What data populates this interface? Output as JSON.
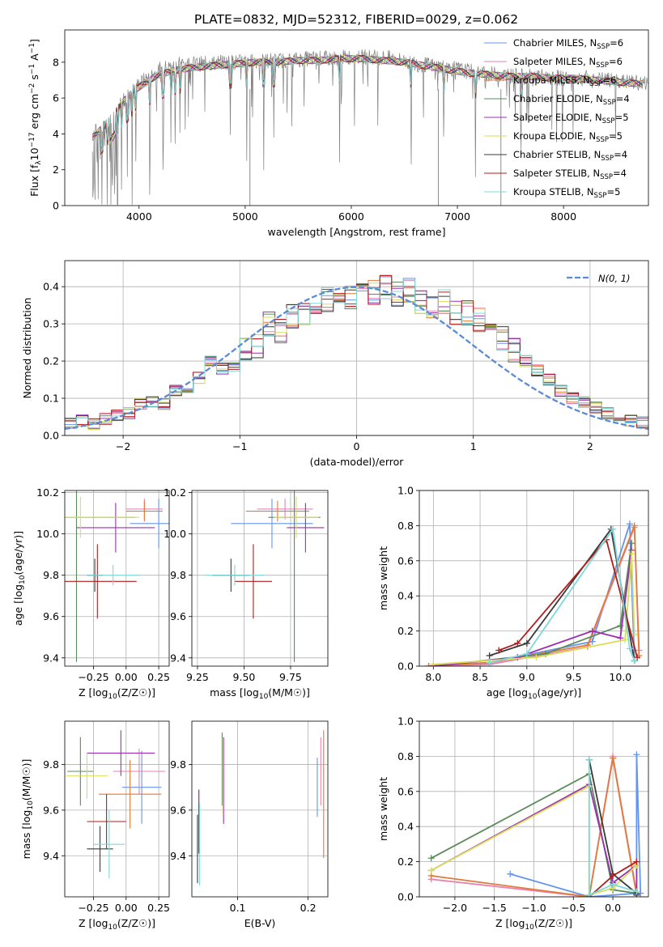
{
  "title": "PLATE=0832, MJD=52312, FIBERID=0029, z=0.062",
  "colors": {
    "data": "#808080",
    "Chabrier MILES": "#6495ed",
    "Salpeter MILES": "#e683b3",
    "Kroupa MILES": "#e07b39",
    "Chabrier ELODIE": "#5b8a5b",
    "Salpeter ELODIE": "#9b30b0",
    "Kroupa ELODIE": "#d8de57",
    "Chabrier STELIB": "#3a3a3a",
    "Salpeter STELIB": "#b01c1c",
    "Kroupa STELIB": "#7fd8d8",
    "normal": "#5b8bd6"
  },
  "legend_labels": [
    {
      "pre": "Chabrier MILES, N",
      "sub": "SSP",
      "post": "=6"
    },
    {
      "pre": "Salpeter MILES, N",
      "sub": "SSP",
      "post": "=6"
    },
    {
      "pre": "Kroupa MILES, N",
      "sub": "SSP",
      "post": "=6"
    },
    {
      "pre": "Chabrier ELODIE, N",
      "sub": "SSP",
      "post": "=4"
    },
    {
      "pre": "Salpeter ELODIE, N",
      "sub": "SSP",
      "post": "=5"
    },
    {
      "pre": "Kroupa ELODIE, N",
      "sub": "SSP",
      "post": "=5"
    },
    {
      "pre": "Chabrier STELIB, N",
      "sub": "SSP",
      "post": "=4"
    },
    {
      "pre": "Salpeter STELIB, N",
      "sub": "SSP",
      "post": "=4"
    },
    {
      "pre": "Kroupa STELIB, N",
      "sub": "SSP",
      "post": "=5"
    }
  ],
  "chart_data": [
    {
      "id": "spectrum",
      "type": "line",
      "xlabel": "wavelength [Angstrom, rest frame]",
      "ylabel": "Flux [fλ10⁻¹⁷ erg cm⁻² s⁻¹ A⁻¹]",
      "xlim": [
        3300,
        8800
      ],
      "ylim": [
        0,
        9.8
      ],
      "xticks": [
        4000,
        5000,
        6000,
        7000,
        8000
      ],
      "yticks": [
        0,
        2,
        4,
        6,
        8
      ],
      "legend": "right",
      "data_spectrum_envelope": {
        "x": [
          3560,
          3700,
          3850,
          4000,
          4200,
          4400,
          4600,
          4800,
          5000,
          5200,
          5400,
          5600,
          5800,
          6000,
          6200,
          6400,
          6600,
          6800,
          7000,
          7200,
          7400,
          7600,
          7800,
          8000,
          8200,
          8400,
          8600,
          8800
        ],
        "y": [
          4.0,
          4.5,
          5.8,
          6.8,
          7.6,
          7.9,
          7.9,
          8.0,
          8.0,
          8.1,
          8.1,
          8.2,
          8.2,
          8.3,
          8.3,
          8.2,
          7.9,
          7.8,
          7.6,
          7.4,
          7.3,
          7.2,
          7.2,
          7.1,
          7.1,
          7.0,
          6.9,
          6.8
        ]
      },
      "model_curve": {
        "x": [
          3560,
          3650,
          3750,
          3850,
          3950,
          4050,
          4150,
          4300,
          4500,
          4700,
          4900,
          5100,
          5300,
          5500,
          5700,
          5900,
          6100,
          6300,
          6500,
          6700,
          6900,
          7100,
          7300,
          7500,
          7700,
          7900,
          8100,
          8300,
          8500,
          8700
        ],
        "y": [
          3.8,
          4.3,
          5.0,
          5.8,
          6.4,
          6.8,
          7.2,
          7.5,
          7.7,
          7.8,
          7.9,
          8.0,
          8.0,
          8.1,
          8.1,
          8.2,
          8.2,
          8.1,
          8.0,
          7.8,
          7.6,
          7.4,
          7.3,
          7.2,
          7.2,
          7.1,
          7.1,
          7.0,
          6.9,
          6.8
        ]
      }
    },
    {
      "id": "residuals",
      "type": "area",
      "xlabel": "(data-model)/error",
      "ylabel": "Normed distribution",
      "xlim": [
        -2.5,
        2.5
      ],
      "ylim": [
        0,
        0.47
      ],
      "xticks": [
        -2,
        -1,
        0,
        1,
        2
      ],
      "yticks": [
        0.0,
        0.1,
        0.2,
        0.3,
        0.4
      ],
      "legend": "top-right",
      "normal_label": "N(0, 1)",
      "bin_edges_step": 0.1,
      "histogram_reference": [
        0.033,
        0.04,
        0.03,
        0.045,
        0.055,
        0.06,
        0.085,
        0.09,
        0.085,
        0.12,
        0.13,
        0.155,
        0.2,
        0.18,
        0.18,
        0.23,
        0.24,
        0.3,
        0.28,
        0.32,
        0.33,
        0.36,
        0.365,
        0.37,
        0.37,
        0.375,
        0.385,
        0.4,
        0.38,
        0.39,
        0.36,
        0.34,
        0.36,
        0.33,
        0.33,
        0.31,
        0.28,
        0.26,
        0.23,
        0.2,
        0.175,
        0.15,
        0.12,
        0.1,
        0.09,
        0.075,
        0.06,
        0.05,
        0.04,
        0.035
      ]
    },
    {
      "id": "age_vs_Z",
      "type": "scatter",
      "xlabel": "Z [log10(Z/Z☉)]",
      "ylabel": "age [log10(age/yr)]",
      "xlim": [
        -0.47,
        0.33
      ],
      "ylim": [
        9.36,
        10.21
      ],
      "xticks": [
        -0.25,
        0.0,
        0.25
      ],
      "yticks": [
        9.4,
        9.6,
        9.8,
        10.0,
        10.2
      ],
      "points": [
        {
          "model": "Chabrier MILES",
          "x": 0.25,
          "xerr": 0.22,
          "y": 10.05,
          "yerr": 0.12
        },
        {
          "model": "Salpeter MILES",
          "x": 0.14,
          "xerr": 0.14,
          "y": 10.12,
          "yerr": 0.05
        },
        {
          "model": "Kroupa MILES",
          "x": 0.14,
          "xerr": 0.14,
          "y": 10.11,
          "yerr": 0.05
        },
        {
          "model": "Chabrier ELODIE",
          "x": -0.38,
          "xerr": 0.45,
          "y": 10.08,
          "yerr": 0.7
        },
        {
          "model": "Salpeter ELODIE",
          "x": -0.08,
          "xerr": 0.3,
          "y": 10.03,
          "yerr": 0.12
        },
        {
          "model": "Kroupa ELODIE",
          "x": -0.35,
          "xerr": 0.45,
          "y": 10.08,
          "yerr": 0.1
        },
        {
          "model": "Chabrier STELIB",
          "x": -0.24,
          "xerr": 0.06,
          "y": 9.8,
          "yerr": 0.08
        },
        {
          "model": "Salpeter STELIB",
          "x": -0.22,
          "xerr": 0.3,
          "y": 9.77,
          "yerr": 0.18
        },
        {
          "model": "Kroupa STELIB",
          "x": -0.1,
          "xerr": 0.2,
          "y": 9.8,
          "yerr": 0.05
        }
      ]
    },
    {
      "id": "age_vs_mass",
      "type": "scatter",
      "xlabel": "mass [log10(M/M☉)]",
      "xlim": [
        9.22,
        9.95
      ],
      "ylim": [
        9.36,
        10.21
      ],
      "xticks": [
        9.25,
        9.5,
        9.75
      ],
      "yticks": [
        9.4,
        9.6,
        9.8,
        10.0,
        10.2
      ],
      "points": [
        {
          "model": "Chabrier MILES",
          "x": 9.65,
          "xerr": 0.22,
          "y": 10.05,
          "yerr": 0.12
        },
        {
          "model": "Salpeter MILES",
          "x": 9.72,
          "xerr": 0.15,
          "y": 10.12,
          "yerr": 0.05
        },
        {
          "model": "Kroupa MILES",
          "x": 9.68,
          "xerr": 0.17,
          "y": 10.11,
          "yerr": 0.05
        },
        {
          "model": "Chabrier ELODIE",
          "x": 9.77,
          "xerr": 0.14,
          "y": 10.08,
          "yerr": 0.7
        },
        {
          "model": "Salpeter ELODIE",
          "x": 9.83,
          "xerr": 0.1,
          "y": 10.03,
          "yerr": 0.12
        },
        {
          "model": "Kroupa ELODIE",
          "x": 9.78,
          "xerr": 0.12,
          "y": 10.08,
          "yerr": 0.1
        },
        {
          "model": "Chabrier STELIB",
          "x": 9.43,
          "xerr": 0.1,
          "y": 9.8,
          "yerr": 0.08
        },
        {
          "model": "Salpeter STELIB",
          "x": 9.55,
          "xerr": 0.1,
          "y": 9.77,
          "yerr": 0.18
        },
        {
          "model": "Kroupa STELIB",
          "x": 9.45,
          "xerr": 0.16,
          "y": 9.8,
          "yerr": 0.05
        }
      ]
    },
    {
      "id": "massweight_vs_age",
      "type": "line",
      "xlabel": "age [log10(age/yr)]",
      "ylabel": "mass weight",
      "xlim": [
        7.85,
        10.3
      ],
      "ylim": [
        0,
        1.0
      ],
      "xticks": [
        8.0,
        8.5,
        9.0,
        9.5,
        10.0
      ],
      "yticks": [
        0.0,
        0.2,
        0.4,
        0.6,
        0.8,
        1.0
      ],
      "series": [
        {
          "model": "Chabrier MILES",
          "x": [
            7.95,
            8.6,
            9.7,
            10.1,
            10.15
          ],
          "y": [
            0.0,
            0.02,
            0.14,
            0.81,
            0.03
          ]
        },
        {
          "model": "Salpeter MILES",
          "x": [
            7.95,
            8.6,
            9.65,
            10.15,
            10.2
          ],
          "y": [
            0.0,
            0.01,
            0.11,
            0.79,
            0.09
          ]
        },
        {
          "model": "Kroupa MILES",
          "x": [
            7.95,
            8.6,
            9.65,
            10.15,
            10.2
          ],
          "y": [
            0.0,
            0.02,
            0.12,
            0.8,
            0.06
          ]
        },
        {
          "model": "Chabrier ELODIE",
          "x": [
            8.0,
            9.2,
            10.0,
            10.12
          ],
          "y": [
            0.0,
            0.07,
            0.23,
            0.7
          ]
        },
        {
          "model": "Salpeter ELODIE",
          "x": [
            8.0,
            8.9,
            9.7,
            10.0,
            10.12
          ],
          "y": [
            0.0,
            0.05,
            0.2,
            0.16,
            0.66
          ]
        },
        {
          "model": "Kroupa ELODIE",
          "x": [
            8.0,
            9.1,
            10.05,
            10.12,
            10.15
          ],
          "y": [
            0.01,
            0.05,
            0.15,
            0.64,
            0.18
          ]
        },
        {
          "model": "Chabrier STELIB",
          "x": [
            8.6,
            9.0,
            9.9,
            10.15
          ],
          "y": [
            0.06,
            0.13,
            0.78,
            0.03
          ]
        },
        {
          "model": "Salpeter STELIB",
          "x": [
            8.7,
            8.9,
            9.85,
            10.18
          ],
          "y": [
            0.09,
            0.13,
            0.72,
            0.05
          ]
        },
        {
          "model": "Kroupa STELIB",
          "x": [
            8.6,
            9.0,
            9.92,
            10.1,
            10.15
          ],
          "y": [
            0.02,
            0.07,
            0.78,
            0.1,
            0.03
          ]
        }
      ]
    },
    {
      "id": "mass_vs_Z",
      "type": "scatter",
      "xlabel": "Z [log10(Z/Z☉)]",
      "ylabel": "mass [log10(M/M☉)]",
      "xlim": [
        -0.47,
        0.33
      ],
      "ylim": [
        9.22,
        9.99
      ],
      "xticks": [
        -0.25,
        0.0,
        0.25
      ],
      "yticks": [
        9.4,
        9.6,
        9.8
      ],
      "points": [
        {
          "model": "Chabrier MILES",
          "x": 0.12,
          "xerr": 0.15,
          "y": 9.7,
          "yerr": 0.16
        },
        {
          "model": "Salpeter MILES",
          "x": 0.1,
          "xerr": 0.2,
          "y": 9.77,
          "yerr": 0.1
        },
        {
          "model": "Kroupa MILES",
          "x": 0.03,
          "xerr": 0.24,
          "y": 9.67,
          "yerr": 0.15
        },
        {
          "model": "Chabrier ELODIE",
          "x": -0.35,
          "xerr": 0.1,
          "y": 9.77,
          "yerr": 0.15
        },
        {
          "model": "Salpeter ELODIE",
          "x": -0.04,
          "xerr": 0.26,
          "y": 9.85,
          "yerr": 0.1
        },
        {
          "model": "Kroupa ELODIE",
          "x": -0.3,
          "xerr": 0.16,
          "y": 9.75,
          "yerr": 0.1
        },
        {
          "model": "Chabrier STELIB",
          "x": -0.2,
          "xerr": 0.1,
          "y": 9.43,
          "yerr": 0.1
        },
        {
          "model": "Salpeter STELIB",
          "x": -0.15,
          "xerr": 0.15,
          "y": 9.55,
          "yerr": 0.12
        },
        {
          "model": "Kroupa STELIB",
          "x": -0.13,
          "xerr": 0.12,
          "y": 9.45,
          "yerr": 0.15
        }
      ]
    },
    {
      "id": "mass_vs_ebv",
      "type": "scatter",
      "xlabel": "E(B-V)",
      "xlim": [
        0.035,
        0.228
      ],
      "ylim": [
        9.22,
        9.99
      ],
      "xticks": [
        0.1,
        0.2
      ],
      "yticks": [
        9.4,
        9.6,
        9.8
      ],
      "points": [
        {
          "model": "Chabrier MILES",
          "x": 0.213,
          "y": 9.7,
          "yerr": 0.13
        },
        {
          "model": "Salpeter MILES",
          "x": 0.218,
          "y": 9.77,
          "yerr": 0.15
        },
        {
          "model": "Kroupa MILES",
          "x": 0.222,
          "y": 9.67,
          "yerr": 0.28
        },
        {
          "model": "Chabrier ELODIE",
          "x": 0.078,
          "y": 9.78,
          "yerr": 0.16
        },
        {
          "model": "Salpeter ELODIE",
          "x": 0.08,
          "y": 9.73,
          "yerr": 0.19
        },
        {
          "model": "Kroupa ELODIE",
          "x": 0.079,
          "y": 9.75,
          "yerr": 0.17
        },
        {
          "model": "Chabrier STELIB",
          "x": 0.043,
          "y": 9.43,
          "yerr": 0.15
        },
        {
          "model": "Salpeter STELIB",
          "x": 0.045,
          "y": 9.55,
          "yerr": 0.14
        },
        {
          "model": "Kroupa STELIB",
          "x": 0.046,
          "y": 9.45,
          "yerr": 0.18
        }
      ]
    },
    {
      "id": "massweight_vs_Z",
      "type": "line",
      "xlabel": "Z [log10(Z/Z☉)]",
      "ylabel": "mass weight",
      "xlim": [
        -2.45,
        0.45
      ],
      "ylim": [
        0,
        1.0
      ],
      "xticks": [
        -2.0,
        -1.5,
        -1.0,
        -0.5,
        0.0
      ],
      "yticks": [
        0.0,
        0.2,
        0.4,
        0.6,
        0.8,
        1.0
      ],
      "series": [
        {
          "model": "Chabrier MILES",
          "x": [
            -1.3,
            -0.3,
            0.3,
            0.3,
            0.35
          ],
          "y": [
            0.13,
            0.0,
            0.02,
            0.81,
            0.02
          ]
        },
        {
          "model": "Salpeter MILES",
          "x": [
            -2.3,
            -0.3,
            0.0,
            0.3
          ],
          "y": [
            0.1,
            0.0,
            0.8,
            0.02
          ]
        },
        {
          "model": "Kroupa MILES",
          "x": [
            -2.3,
            -0.3,
            0.0,
            0.3
          ],
          "y": [
            0.12,
            0.0,
            0.79,
            0.01
          ]
        },
        {
          "model": "Chabrier ELODIE",
          "x": [
            -2.3,
            -0.3,
            0.0,
            0.3
          ],
          "y": [
            0.22,
            0.7,
            0.04,
            0.02
          ]
        },
        {
          "model": "Salpeter ELODIE",
          "x": [
            -2.3,
            -0.3,
            0.0,
            0.3,
            0.3
          ],
          "y": [
            0.15,
            0.64,
            0.08,
            0.18,
            0.02
          ]
        },
        {
          "model": "Kroupa ELODIE",
          "x": [
            -2.3,
            -0.3,
            -0.3,
            0.0,
            0.3
          ],
          "y": [
            0.15,
            0.63,
            0.01,
            0.05,
            0.18
          ]
        },
        {
          "model": "Chabrier STELIB",
          "x": [
            -0.3,
            0.0,
            0.3,
            0.3
          ],
          "y": [
            0.78,
            0.13,
            0.02,
            0.01
          ]
        },
        {
          "model": "Salpeter STELIB",
          "x": [
            -0.3,
            0.0,
            0.3
          ],
          "y": [
            0.0,
            0.12,
            0.2
          ]
        },
        {
          "model": "Kroupa STELIB",
          "x": [
            -0.3,
            -0.3,
            0.0,
            0.3
          ],
          "y": [
            0.78,
            0.01,
            0.07,
            0.03
          ]
        }
      ]
    }
  ]
}
